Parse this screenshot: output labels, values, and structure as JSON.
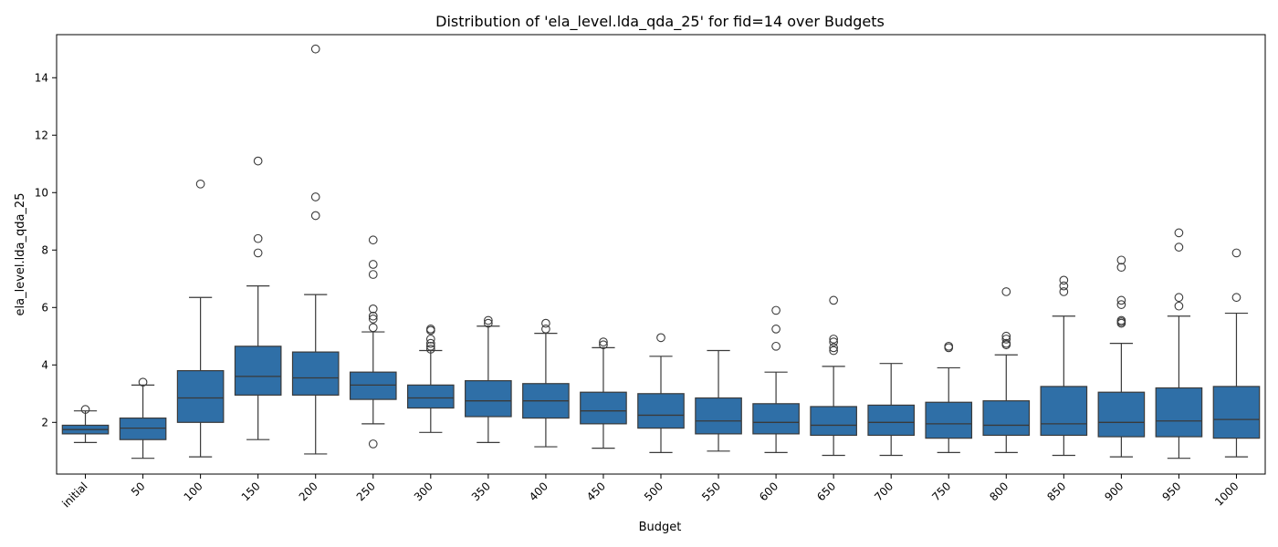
{
  "chart_data": {
    "type": "box",
    "title": "Distribution of 'ela_level.lda_qda_25' for fid=14 over Budgets",
    "xlabel": "Budget",
    "ylabel": "ela_level.lda_qda_25",
    "ylim": [
      0.2,
      15.5
    ],
    "yticks": [
      2,
      4,
      6,
      8,
      10,
      12,
      14
    ],
    "grid": false,
    "box_color": "#2f6fa7",
    "line_color": "#3a3a3a",
    "categories": [
      "initial",
      "50",
      "100",
      "150",
      "200",
      "250",
      "300",
      "350",
      "400",
      "450",
      "500",
      "550",
      "600",
      "650",
      "700",
      "750",
      "800",
      "850",
      "900",
      "950",
      "1000"
    ],
    "boxes": [
      {
        "whisker_low": 1.3,
        "q1": 1.6,
        "median": 1.75,
        "q3": 1.9,
        "whisker_high": 2.4,
        "outliers": [
          2.45
        ]
      },
      {
        "whisker_low": 0.75,
        "q1": 1.4,
        "median": 1.8,
        "q3": 2.15,
        "whisker_high": 3.3,
        "outliers": [
          3.4
        ]
      },
      {
        "whisker_low": 0.8,
        "q1": 2.0,
        "median": 2.85,
        "q3": 3.8,
        "whisker_high": 6.35,
        "outliers": [
          10.3
        ]
      },
      {
        "whisker_low": 1.4,
        "q1": 2.95,
        "median": 3.6,
        "q3": 4.65,
        "whisker_high": 6.75,
        "outliers": [
          7.9,
          8.4,
          11.1
        ]
      },
      {
        "whisker_low": 0.9,
        "q1": 2.95,
        "median": 3.55,
        "q3": 4.45,
        "whisker_high": 6.45,
        "outliers": [
          9.2,
          9.85,
          15.0
        ]
      },
      {
        "whisker_low": 1.95,
        "q1": 2.8,
        "median": 3.3,
        "q3": 3.75,
        "whisker_high": 5.15,
        "outliers": [
          1.25,
          5.3,
          5.6,
          5.7,
          5.95,
          7.15,
          7.5,
          8.35
        ]
      },
      {
        "whisker_low": 1.65,
        "q1": 2.5,
        "median": 2.85,
        "q3": 3.3,
        "whisker_high": 4.5,
        "outliers": [
          4.55,
          4.65,
          4.75,
          4.9,
          5.2,
          5.25
        ]
      },
      {
        "whisker_low": 1.3,
        "q1": 2.2,
        "median": 2.75,
        "q3": 3.45,
        "whisker_high": 5.35,
        "outliers": [
          5.45,
          5.55
        ]
      },
      {
        "whisker_low": 1.15,
        "q1": 2.15,
        "median": 2.75,
        "q3": 3.35,
        "whisker_high": 5.1,
        "outliers": [
          5.25,
          5.45
        ]
      },
      {
        "whisker_low": 1.1,
        "q1": 1.95,
        "median": 2.4,
        "q3": 3.05,
        "whisker_high": 4.6,
        "outliers": [
          4.7,
          4.8
        ]
      },
      {
        "whisker_low": 0.95,
        "q1": 1.8,
        "median": 2.25,
        "q3": 3.0,
        "whisker_high": 4.3,
        "outliers": [
          4.95
        ]
      },
      {
        "whisker_low": 1.0,
        "q1": 1.6,
        "median": 2.05,
        "q3": 2.85,
        "whisker_high": 4.5,
        "outliers": []
      },
      {
        "whisker_low": 0.95,
        "q1": 1.6,
        "median": 2.0,
        "q3": 2.65,
        "whisker_high": 3.75,
        "outliers": [
          4.65,
          5.25,
          5.9
        ]
      },
      {
        "whisker_low": 0.85,
        "q1": 1.55,
        "median": 1.9,
        "q3": 2.55,
        "whisker_high": 3.95,
        "outliers": [
          4.5,
          4.6,
          4.8,
          4.9,
          6.25
        ]
      },
      {
        "whisker_low": 0.85,
        "q1": 1.55,
        "median": 2.0,
        "q3": 2.6,
        "whisker_high": 4.05,
        "outliers": []
      },
      {
        "whisker_low": 0.95,
        "q1": 1.45,
        "median": 1.95,
        "q3": 2.7,
        "whisker_high": 3.9,
        "outliers": [
          4.6,
          4.65
        ]
      },
      {
        "whisker_low": 0.95,
        "q1": 1.55,
        "median": 1.9,
        "q3": 2.75,
        "whisker_high": 4.35,
        "outliers": [
          4.7,
          4.75,
          4.9,
          5.0,
          6.55
        ]
      },
      {
        "whisker_low": 0.85,
        "q1": 1.55,
        "median": 1.95,
        "q3": 3.25,
        "whisker_high": 5.7,
        "outliers": [
          6.55,
          6.75,
          6.95
        ]
      },
      {
        "whisker_low": 0.8,
        "q1": 1.5,
        "median": 2.0,
        "q3": 3.05,
        "whisker_high": 4.75,
        "outliers": [
          5.45,
          5.5,
          5.55,
          6.1,
          6.25,
          7.4,
          7.65
        ]
      },
      {
        "whisker_low": 0.75,
        "q1": 1.5,
        "median": 2.05,
        "q3": 3.2,
        "whisker_high": 5.7,
        "outliers": [
          6.05,
          6.35,
          8.1,
          8.6
        ]
      },
      {
        "whisker_low": 0.8,
        "q1": 1.45,
        "median": 2.1,
        "q3": 3.25,
        "whisker_high": 5.8,
        "outliers": [
          6.35,
          7.9
        ]
      }
    ]
  }
}
